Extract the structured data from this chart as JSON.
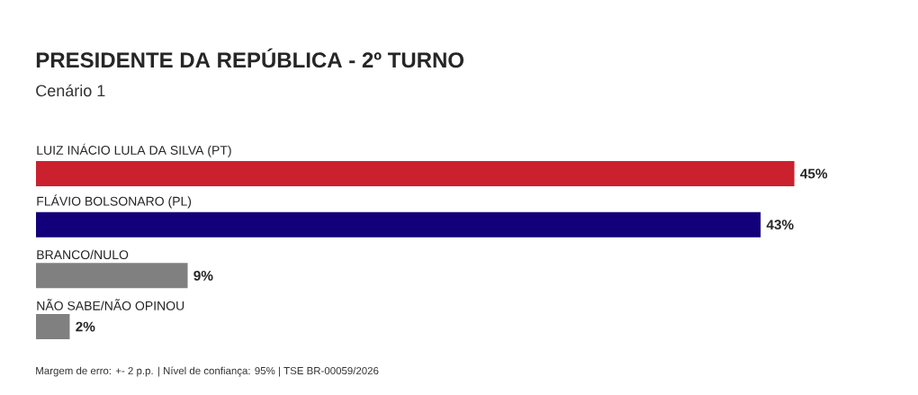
{
  "chart_data": {
    "type": "bar",
    "orientation": "horizontal",
    "title": "PRESIDENTE DA REPÚBLICA - 2º TURNO",
    "subtitle": "Cenário 1",
    "categories": [
      "LUIZ INÁCIO LULA DA SILVA (PT)",
      "FLÁVIO BOLSONARO (PL)",
      "BRANCO/NULO",
      "NÃO SABE/NÃO OPINOU"
    ],
    "values": [
      45,
      43,
      9,
      2
    ],
    "value_labels": [
      "45%",
      "43%",
      "9%",
      "2%"
    ],
    "colors": [
      "#cb202d",
      "#12007a",
      "#808080",
      "#808080"
    ],
    "annotations": [
      "Margem de erro: +- 2 p.p. | Nível de confiança: 95% | TSE BR-00059/2026"
    ]
  }
}
